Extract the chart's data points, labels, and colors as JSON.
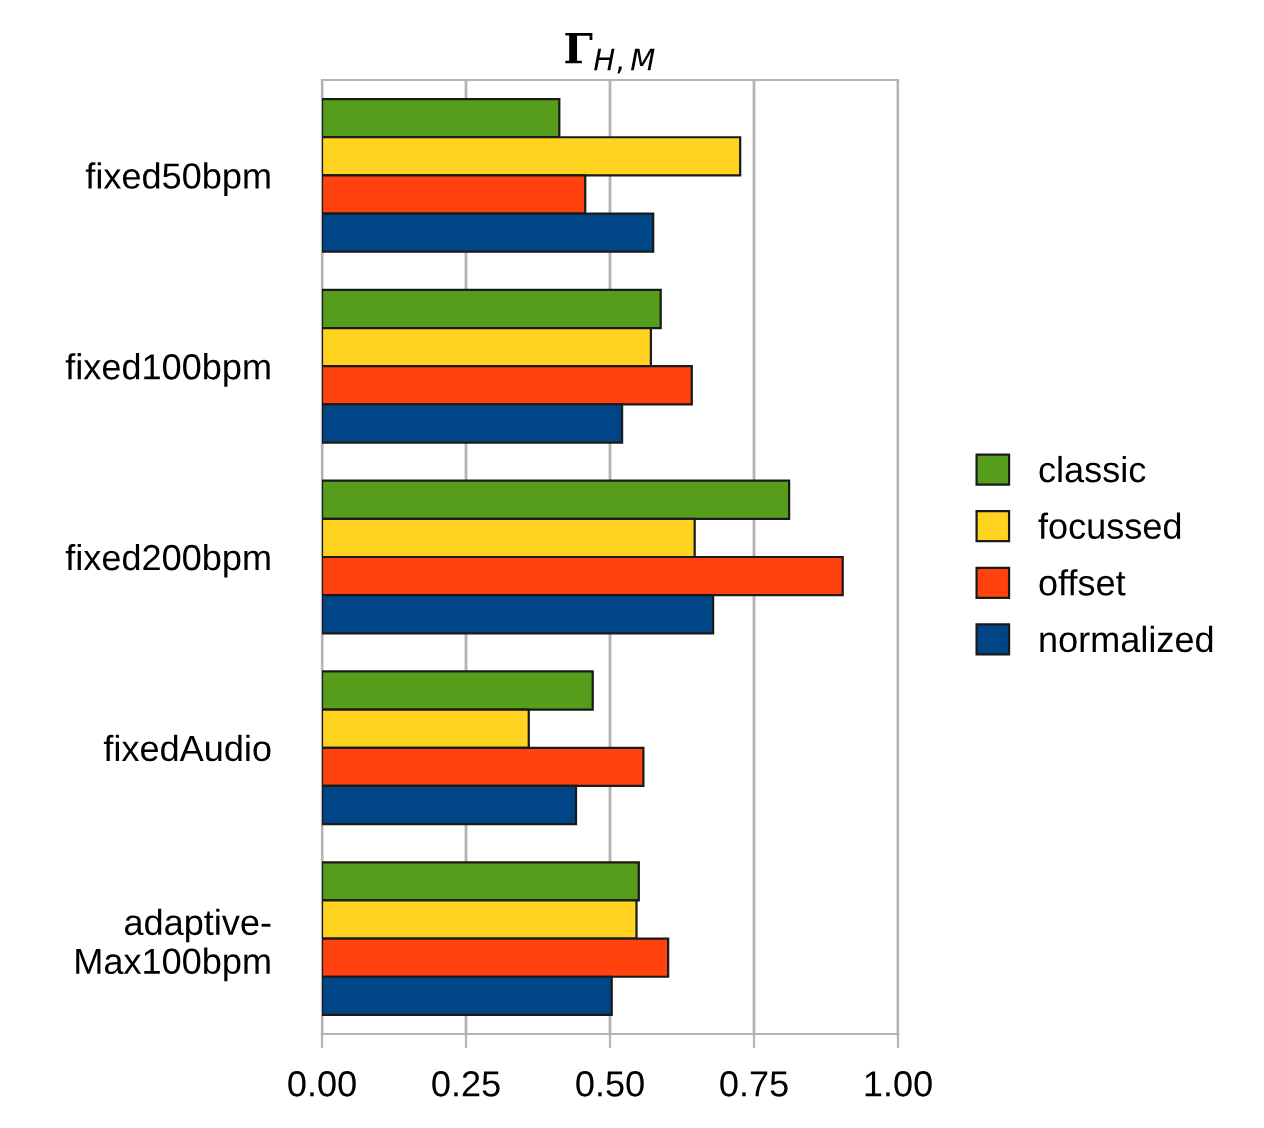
{
  "chart_data": {
    "type": "bar",
    "orientation": "horizontal",
    "title": "Γ$_{H,M}$",
    "categories": [
      "fixed50bpm",
      "fixed100bpm",
      "fixed200bpm",
      "fixedAudio",
      "adaptive-\nMax100bpm"
    ],
    "series": [
      {
        "name": "classic",
        "color": "#579d1c",
        "values": [
          0.412,
          0.588,
          0.811,
          0.47,
          0.55
        ]
      },
      {
        "name": "focussed",
        "color": "#ffd320",
        "values": [
          0.726,
          0.571,
          0.647,
          0.359,
          0.546
        ]
      },
      {
        "name": "offset",
        "color": "#ff420e",
        "values": [
          0.457,
          0.642,
          0.904,
          0.558,
          0.601
        ]
      },
      {
        "name": "normalized",
        "color": "#004586",
        "values": [
          0.575,
          0.521,
          0.679,
          0.441,
          0.503
        ]
      }
    ],
    "xlim": [
      0,
      1
    ],
    "xticks": [
      {
        "value": 0,
        "label": "0.00"
      },
      {
        "value": 0.25,
        "label": "0.25"
      },
      {
        "value": 0.5,
        "label": "0.50"
      },
      {
        "value": 0.75,
        "label": "0.75"
      },
      {
        "value": 1,
        "label": "1.00"
      }
    ],
    "grid": "x",
    "legend": "right"
  }
}
